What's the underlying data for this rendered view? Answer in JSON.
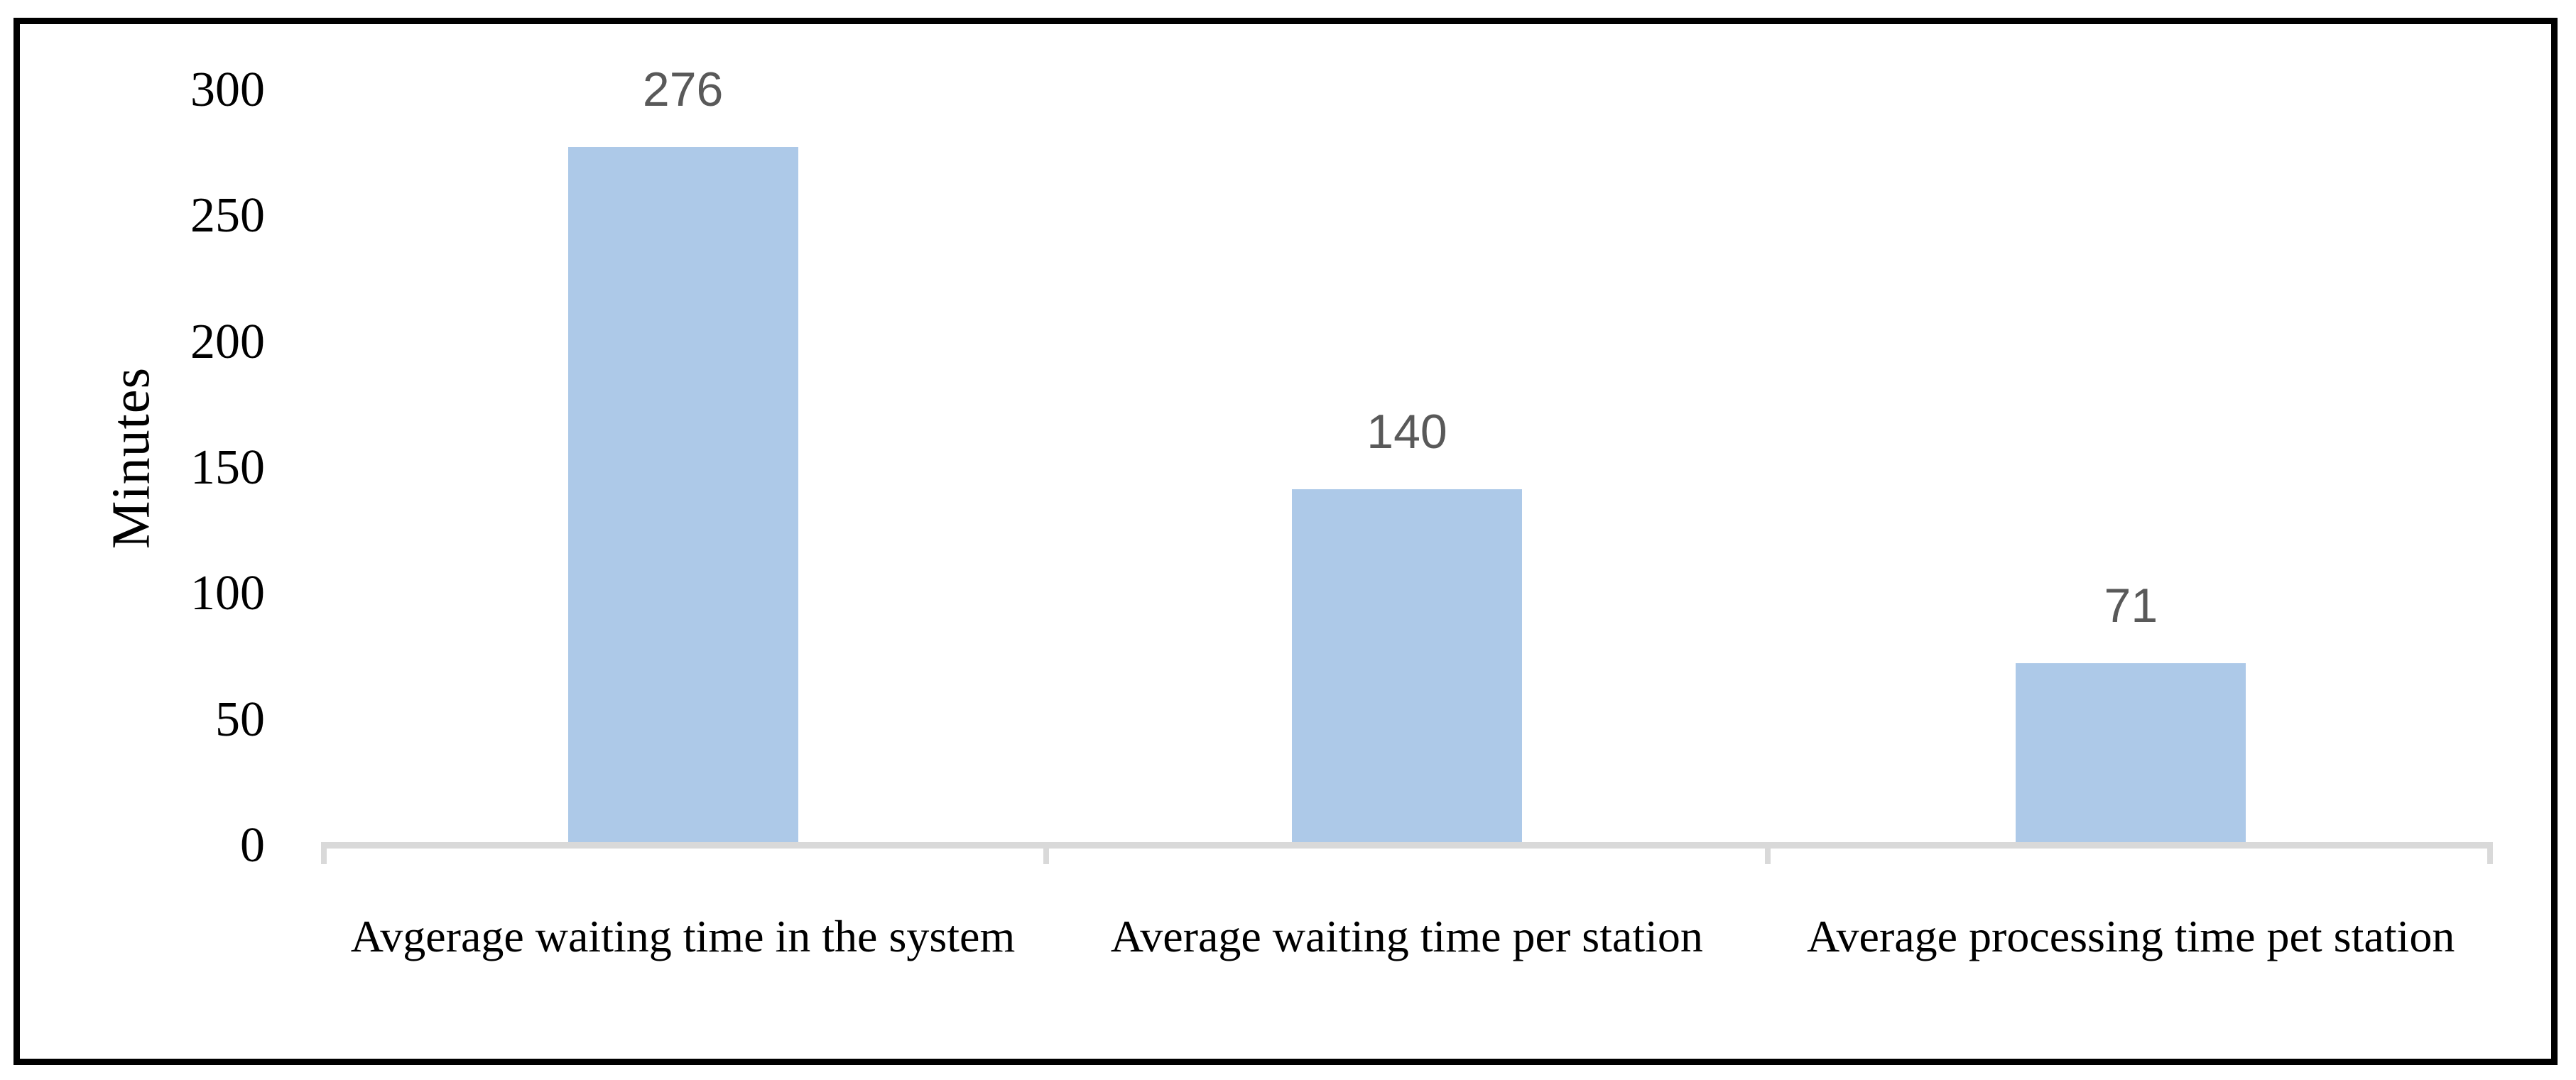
{
  "chart_data": {
    "type": "bar",
    "title": "",
    "xlabel": "",
    "ylabel": "Minutes",
    "categories": [
      "Avgerage waiting time in the system",
      "Average waiting time per station",
      "Average processing time pet station"
    ],
    "values": [
      276,
      140,
      71
    ],
    "data_labels": [
      "276",
      "140",
      "71"
    ],
    "yticks": [
      0,
      50,
      100,
      150,
      200,
      250,
      300
    ],
    "ylim": [
      0,
      300
    ],
    "grid": false,
    "legend": "none",
    "bar_color": "#ADC9E8",
    "axis_color": "#D9D9D9",
    "data_label_color": "#595959",
    "text_color": "#000000",
    "border_color": "#000000"
  }
}
